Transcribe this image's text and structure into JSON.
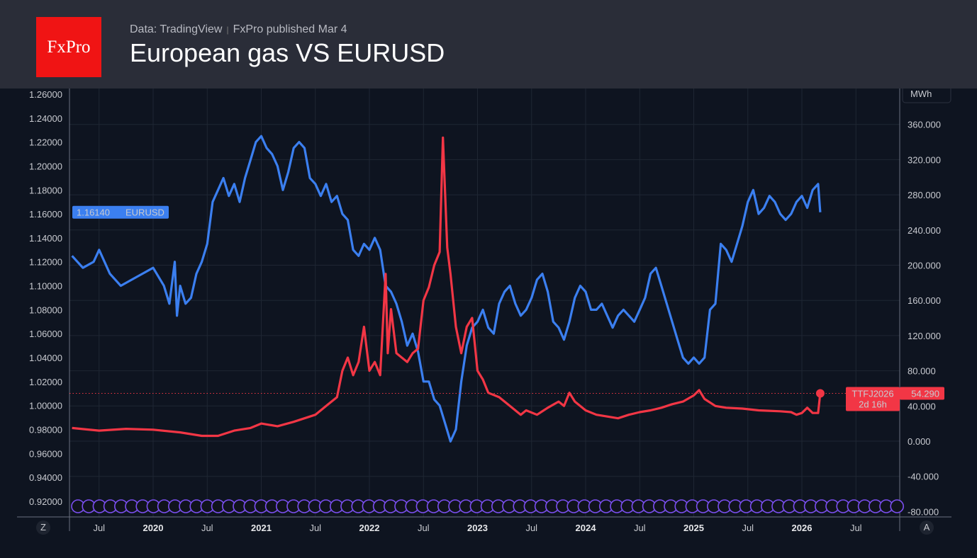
{
  "header": {
    "logo": "FxPro",
    "source": "Data: TradingView",
    "published": "FxPro published Mar 4",
    "title": "European gas VS EURUSD"
  },
  "chart_data": {
    "type": "line",
    "title": "European gas VS EURUSD",
    "left_axis": {
      "min": 0.92,
      "max": 1.26,
      "ticks": [
        "1.26000",
        "1.24000",
        "1.22000",
        "1.20000",
        "1.18000",
        "1.16000",
        "1.14000",
        "1.12000",
        "1.10000",
        "1.08000",
        "1.06000",
        "1.04000",
        "1.02000",
        "1.00000",
        "0.98000",
        "0.96000",
        "0.94000",
        "0.92000"
      ]
    },
    "right_axis": {
      "unit": "MWh",
      "min": -80,
      "max": 360,
      "ticks": [
        "360.000",
        "320.000",
        "280.000",
        "240.000",
        "200.000",
        "160.000",
        "120.000",
        "80.000",
        "40.000",
        "0.000",
        "-40.000",
        "-80.000"
      ]
    },
    "x_ticks": [
      {
        "t": 2019.5,
        "label": "Jul",
        "bold": false
      },
      {
        "t": 2020,
        "label": "2020",
        "bold": true
      },
      {
        "t": 2020.5,
        "label": "Jul",
        "bold": false
      },
      {
        "t": 2021,
        "label": "2021",
        "bold": true
      },
      {
        "t": 2021.5,
        "label": "Jul",
        "bold": false
      },
      {
        "t": 2022,
        "label": "2022",
        "bold": true
      },
      {
        "t": 2022.5,
        "label": "Jul",
        "bold": false
      },
      {
        "t": 2023,
        "label": "2023",
        "bold": true
      },
      {
        "t": 2023.5,
        "label": "Jul",
        "bold": false
      },
      {
        "t": 2024,
        "label": "2024",
        "bold": true
      },
      {
        "t": 2024.5,
        "label": "Jul",
        "bold": false
      },
      {
        "t": 2025,
        "label": "2025",
        "bold": true
      },
      {
        "t": 2025.5,
        "label": "Jul",
        "bold": false
      },
      {
        "t": 2026,
        "label": "2026",
        "bold": true
      },
      {
        "t": 2026.5,
        "label": "Jul",
        "bold": false
      }
    ],
    "series": [
      {
        "name": "EURUSD",
        "axis": "left",
        "color": "#3b7ff0",
        "last_label": "1.16140",
        "x": [
          2019.25,
          2019.35,
          2019.45,
          2019.5,
          2019.55,
          2019.6,
          2019.7,
          2019.8,
          2019.9,
          2020.0,
          2020.1,
          2020.15,
          2020.2,
          2020.22,
          2020.25,
          2020.3,
          2020.35,
          2020.4,
          2020.45,
          2020.5,
          2020.55,
          2020.6,
          2020.65,
          2020.7,
          2020.75,
          2020.8,
          2020.85,
          2020.9,
          2020.95,
          2021.0,
          2021.05,
          2021.1,
          2021.15,
          2021.2,
          2021.25,
          2021.3,
          2021.35,
          2021.4,
          2021.45,
          2021.5,
          2021.55,
          2021.6,
          2021.65,
          2021.7,
          2021.75,
          2021.8,
          2021.85,
          2021.9,
          2021.95,
          2022.0,
          2022.05,
          2022.1,
          2022.15,
          2022.2,
          2022.25,
          2022.3,
          2022.35,
          2022.4,
          2022.45,
          2022.5,
          2022.55,
          2022.6,
          2022.65,
          2022.7,
          2022.75,
          2022.8,
          2022.85,
          2022.9,
          2022.95,
          2023.0,
          2023.05,
          2023.1,
          2023.15,
          2023.2,
          2023.25,
          2023.3,
          2023.35,
          2023.4,
          2023.45,
          2023.5,
          2023.55,
          2023.6,
          2023.65,
          2023.7,
          2023.75,
          2023.8,
          2023.85,
          2023.9,
          2023.95,
          2024.0,
          2024.05,
          2024.1,
          2024.15,
          2024.2,
          2024.25,
          2024.3,
          2024.35,
          2024.4,
          2024.45,
          2024.5,
          2024.55,
          2024.6,
          2024.65,
          2024.7,
          2024.75,
          2024.8,
          2024.85,
          2024.9,
          2024.95,
          2025.0,
          2025.05,
          2025.1,
          2025.15,
          2025.2,
          2025.25,
          2025.3,
          2025.35,
          2025.4,
          2025.45,
          2025.5,
          2025.55,
          2025.6,
          2025.65,
          2025.7,
          2025.75,
          2025.8,
          2025.85,
          2025.9,
          2025.95,
          2026.0,
          2026.05,
          2026.1,
          2026.15,
          2026.17
        ],
        "y": [
          1.125,
          1.115,
          1.12,
          1.13,
          1.12,
          1.11,
          1.1,
          1.105,
          1.11,
          1.115,
          1.1,
          1.085,
          1.12,
          1.075,
          1.1,
          1.085,
          1.09,
          1.11,
          1.12,
          1.135,
          1.17,
          1.18,
          1.19,
          1.175,
          1.185,
          1.17,
          1.19,
          1.205,
          1.22,
          1.225,
          1.215,
          1.21,
          1.2,
          1.18,
          1.195,
          1.215,
          1.22,
          1.215,
          1.19,
          1.185,
          1.175,
          1.185,
          1.17,
          1.175,
          1.16,
          1.155,
          1.13,
          1.125,
          1.135,
          1.13,
          1.14,
          1.13,
          1.1,
          1.095,
          1.085,
          1.07,
          1.05,
          1.06,
          1.045,
          1.02,
          1.02,
          1.005,
          1.0,
          0.985,
          0.97,
          0.98,
          1.02,
          1.05,
          1.065,
          1.07,
          1.08,
          1.065,
          1.06,
          1.085,
          1.095,
          1.1,
          1.085,
          1.075,
          1.08,
          1.09,
          1.105,
          1.11,
          1.095,
          1.07,
          1.065,
          1.055,
          1.07,
          1.09,
          1.1,
          1.095,
          1.08,
          1.08,
          1.085,
          1.075,
          1.065,
          1.075,
          1.08,
          1.075,
          1.07,
          1.08,
          1.09,
          1.11,
          1.115,
          1.1,
          1.085,
          1.07,
          1.055,
          1.04,
          1.035,
          1.04,
          1.035,
          1.04,
          1.08,
          1.085,
          1.135,
          1.13,
          1.12,
          1.135,
          1.15,
          1.17,
          1.18,
          1.16,
          1.165,
          1.175,
          1.17,
          1.16,
          1.155,
          1.16,
          1.17,
          1.175,
          1.165,
          1.18,
          1.185,
          1.1614
        ]
      },
      {
        "name": "TTFJ2026",
        "axis": "right",
        "color": "#f23645",
        "last_label": "54.290",
        "countdown": "2d 16h",
        "x": [
          2019.25,
          2019.5,
          2019.75,
          2020.0,
          2020.25,
          2020.45,
          2020.6,
          2020.75,
          2020.9,
          2021.0,
          2021.15,
          2021.3,
          2021.5,
          2021.6,
          2021.7,
          2021.75,
          2021.8,
          2021.85,
          2021.9,
          2021.95,
          2022.0,
          2022.05,
          2022.1,
          2022.15,
          2022.17,
          2022.2,
          2022.25,
          2022.3,
          2022.35,
          2022.4,
          2022.45,
          2022.5,
          2022.55,
          2022.6,
          2022.65,
          2022.68,
          2022.72,
          2022.75,
          2022.8,
          2022.85,
          2022.9,
          2022.95,
          2023.0,
          2023.05,
          2023.1,
          2023.2,
          2023.3,
          2023.4,
          2023.45,
          2023.55,
          2023.65,
          2023.75,
          2023.8,
          2023.85,
          2023.9,
          2024.0,
          2024.1,
          2024.2,
          2024.3,
          2024.4,
          2024.5,
          2024.6,
          2024.7,
          2024.8,
          2024.9,
          2025.0,
          2025.05,
          2025.1,
          2025.2,
          2025.3,
          2025.45,
          2025.6,
          2025.8,
          2025.9,
          2025.95,
          2026.0,
          2026.05,
          2026.1,
          2026.15,
          2026.17
        ],
        "y": [
          15,
          12,
          14,
          13,
          10,
          6,
          6,
          12,
          15,
          20,
          17,
          22,
          30,
          40,
          50,
          80,
          95,
          75,
          90,
          130,
          80,
          90,
          75,
          190,
          100,
          150,
          100,
          95,
          90,
          100,
          105,
          160,
          175,
          200,
          215,
          345,
          220,
          190,
          130,
          100,
          130,
          140,
          80,
          70,
          55,
          50,
          40,
          30,
          35,
          30,
          38,
          45,
          40,
          55,
          45,
          35,
          30,
          28,
          26,
          30,
          33,
          35,
          38,
          42,
          45,
          52,
          58,
          48,
          40,
          38,
          37,
          35,
          34,
          33,
          30,
          32,
          38,
          32,
          32,
          54.29
        ]
      }
    ]
  }
}
